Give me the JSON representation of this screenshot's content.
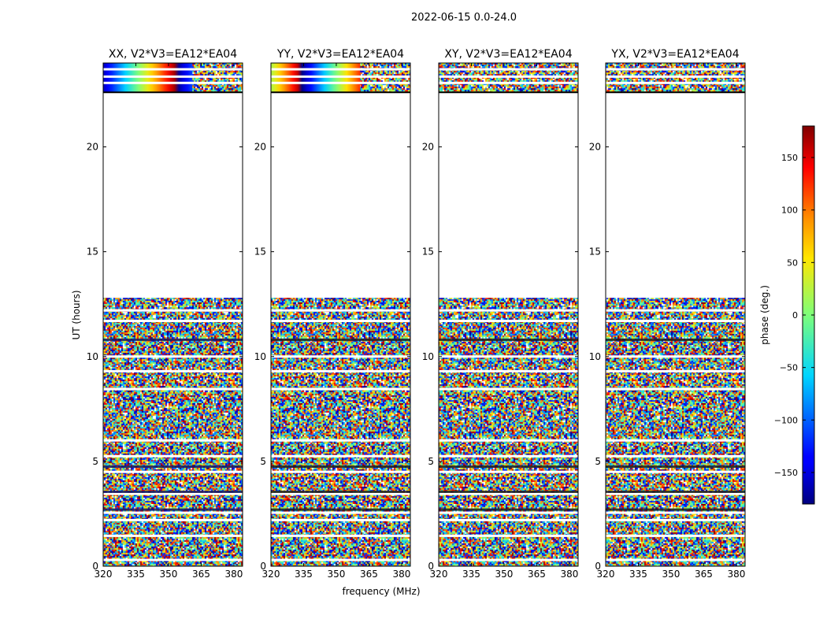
{
  "chart_data": {
    "type": "heatmap",
    "title": "2022-06-15 0.0-24.0",
    "xlabel": "frequency (MHz)",
    "ylabel": "UT (hours)",
    "xlim": [
      320,
      384
    ],
    "ylim": [
      0,
      24
    ],
    "xticks": [
      320,
      335,
      350,
      365,
      380
    ],
    "yticks": [
      0,
      5,
      10,
      15,
      20
    ],
    "panels": [
      {
        "title": "XX, V2*V3=EA12*EA04"
      },
      {
        "title": "YY, V2*V3=EA12*EA04"
      },
      {
        "title": "XY, V2*V3=EA12*EA04"
      },
      {
        "title": "YX, V2*V3=EA12*EA04"
      }
    ],
    "data_time_ranges": [
      [
        0,
        12.8
      ],
      [
        22.6,
        24
      ]
    ],
    "flagged_gaps": [
      [
        12.8,
        22.6
      ]
    ],
    "colorbar": {
      "label": "phase (deg.)",
      "range": [
        -180,
        180
      ],
      "ticks": [
        150,
        100,
        50,
        0,
        -50,
        -100,
        -150
      ],
      "tick_labels": [
        "150",
        "100",
        "50",
        "0",
        "−50",
        "−100",
        "−150"
      ],
      "colormap": "jet"
    }
  }
}
